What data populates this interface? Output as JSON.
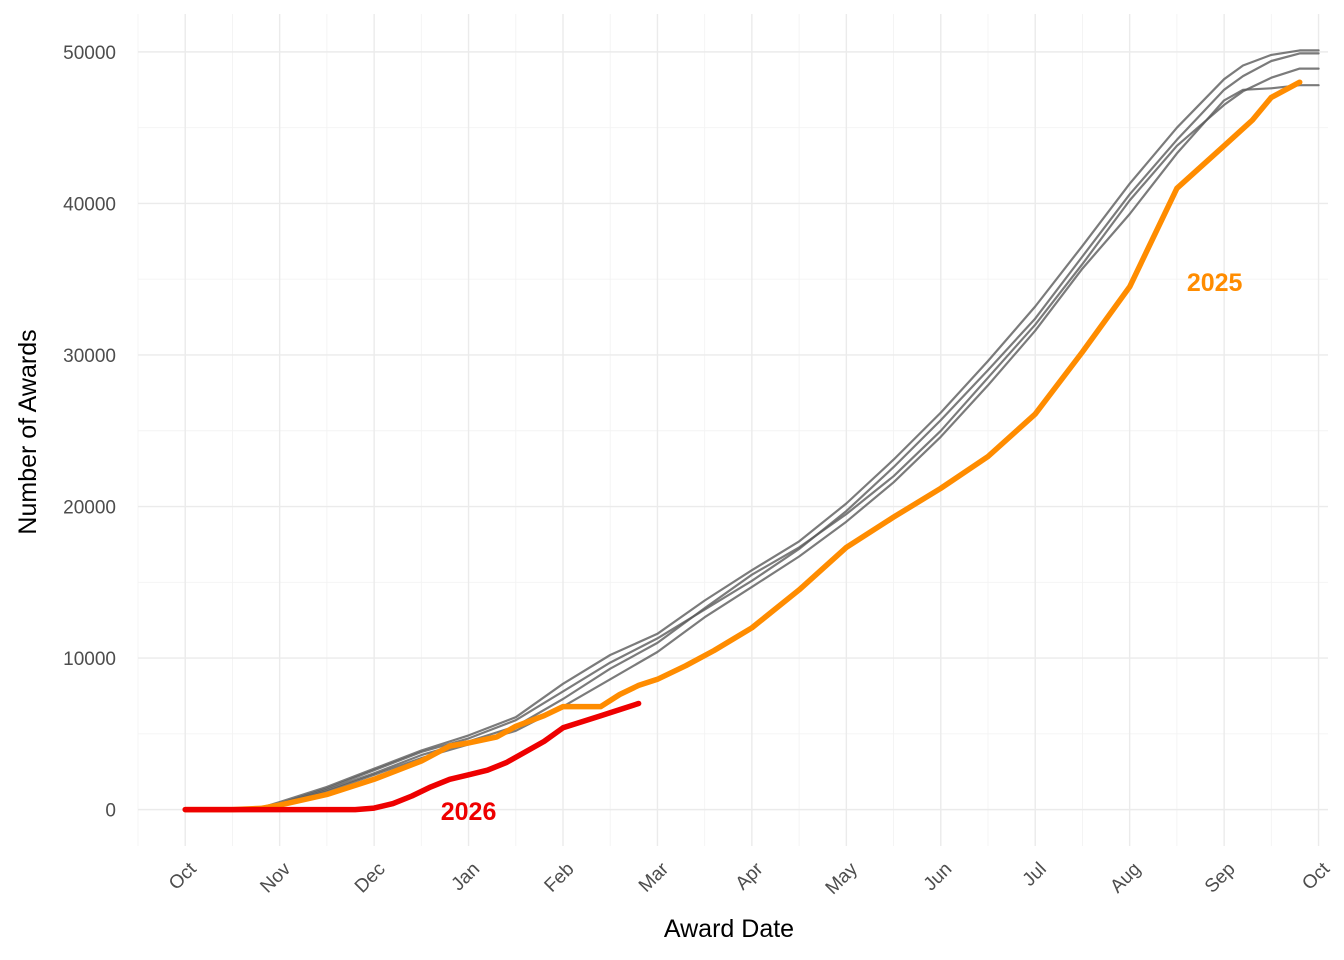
{
  "chart_data": {
    "type": "line",
    "title": "",
    "xlabel": "Award Date",
    "ylabel": "Number of Awards",
    "x_ticks": [
      {
        "label": "Oct",
        "month_index": 0
      },
      {
        "label": "Nov",
        "month_index": 1
      },
      {
        "label": "Dec",
        "month_index": 2
      },
      {
        "label": "Jan",
        "month_index": 3
      },
      {
        "label": "Feb",
        "month_index": 4
      },
      {
        "label": "Mar",
        "month_index": 5
      },
      {
        "label": "Apr",
        "month_index": 6
      },
      {
        "label": "May",
        "month_index": 7
      },
      {
        "label": "Jun",
        "month_index": 8
      },
      {
        "label": "Jul",
        "month_index": 9
      },
      {
        "label": "Aug",
        "month_index": 10
      },
      {
        "label": "Sep",
        "month_index": 11
      },
      {
        "label": "Oct",
        "month_index": 12
      }
    ],
    "y_ticks": [
      0,
      10000,
      20000,
      30000,
      40000,
      50000
    ],
    "xlim": [
      -0.5,
      12.1
    ],
    "ylim": [
      -2400,
      52500
    ],
    "grid": true,
    "legend": "none",
    "x_unit": "months since Oct 1",
    "series": [
      {
        "label": "",
        "color": "#5a5a5a",
        "x": [
          0,
          0.5,
          0.8,
          1.0,
          1.5,
          2.0,
          2.5,
          3.0,
          3.5,
          4.0,
          4.5,
          5.0,
          5.5,
          6.0,
          6.5,
          7.0,
          7.5,
          8.0,
          8.5,
          9.0,
          9.5,
          10.0,
          10.5,
          11.0,
          11.2,
          11.5,
          11.8,
          12.0
        ],
        "y": [
          0,
          0,
          100,
          400,
          1400,
          2600,
          3800,
          4700,
          5900,
          7800,
          9700,
          11300,
          13200,
          15100,
          17200,
          19700,
          22600,
          25700,
          29000,
          32400,
          36500,
          40600,
          44200,
          47500,
          48400,
          49400,
          49900,
          49900
        ]
      },
      {
        "label": "",
        "color": "#5a5a5a",
        "x": [
          0,
          0.5,
          0.8,
          1.0,
          1.5,
          2.0,
          2.5,
          3.0,
          3.5,
          4.0,
          4.5,
          5.0,
          5.5,
          6.0,
          6.5,
          7.0,
          7.5,
          8.0,
          8.5,
          9.0,
          9.5,
          10.0,
          10.5,
          11.0,
          11.2,
          11.5,
          11.8,
          12.0
        ],
        "y": [
          0,
          0,
          80,
          350,
          1300,
          2400,
          3600,
          4500,
          5500,
          7300,
          9300,
          11000,
          13300,
          15500,
          17300,
          19500,
          22000,
          25000,
          28500,
          32000,
          36000,
          40200,
          43800,
          46500,
          47400,
          48300,
          48900,
          48900
        ]
      },
      {
        "label": "",
        "color": "#5a5a5a",
        "x": [
          0,
          0.5,
          0.8,
          1.0,
          1.5,
          2.0,
          2.5,
          3.0,
          3.5,
          4.0,
          4.5,
          5.0,
          5.5,
          6.0,
          6.5,
          7.0,
          7.5,
          8.0,
          8.5,
          9.0,
          9.5,
          10.0,
          10.5,
          11.0,
          11.2,
          11.5,
          11.8,
          12.0
        ],
        "y": [
          0,
          0,
          60,
          300,
          1200,
          2300,
          3400,
          4300,
          5200,
          6800,
          8600,
          10400,
          12700,
          14700,
          16700,
          19000,
          21600,
          24600,
          28000,
          31600,
          35700,
          39300,
          43300,
          46800,
          47500,
          47600,
          47800,
          47800
        ]
      },
      {
        "label": "",
        "color": "#5a5a5a",
        "x": [
          0,
          0.5,
          0.8,
          1.0,
          1.5,
          2.0,
          2.5,
          3.0,
          3.5,
          4.0,
          4.5,
          5.0,
          5.5,
          6.0,
          6.5,
          7.0,
          7.5,
          8.0,
          8.5,
          9.0,
          9.5,
          10.0,
          10.5,
          11.0,
          11.2,
          11.5,
          11.8,
          12.0
        ],
        "y": [
          0,
          0,
          120,
          500,
          1500,
          2700,
          3900,
          4900,
          6100,
          8300,
          10200,
          11600,
          13800,
          15800,
          17700,
          20200,
          23100,
          26200,
          29600,
          33200,
          37200,
          41300,
          45000,
          48200,
          49100,
          49800,
          50100,
          50100
        ]
      },
      {
        "label": "2025",
        "color": "#ff8c00",
        "x": [
          0,
          0.5,
          0.8,
          1.0,
          1.5,
          2.0,
          2.5,
          2.8,
          3.0,
          3.3,
          3.5,
          3.8,
          4.0,
          4.2,
          4.4,
          4.6,
          4.8,
          5.0,
          5.3,
          5.6,
          6.0,
          6.5,
          7.0,
          7.5,
          8.0,
          8.5,
          9.0,
          9.5,
          10.0,
          10.5,
          11.0,
          11.3,
          11.5,
          11.8
        ],
        "y": [
          0,
          0,
          80,
          300,
          1000,
          2000,
          3200,
          4200,
          4400,
          4800,
          5500,
          6200,
          6800,
          6800,
          6800,
          7600,
          8200,
          8600,
          9500,
          10500,
          12000,
          14500,
          17300,
          19300,
          21200,
          23300,
          26100,
          30200,
          34500,
          41000,
          43800,
          45500,
          47000,
          48000
        ]
      },
      {
        "label": "2026",
        "color": "#ee0000",
        "x": [
          0,
          0.5,
          1.0,
          1.5,
          1.8,
          2.0,
          2.2,
          2.4,
          2.6,
          2.8,
          3.0,
          3.2,
          3.4,
          3.6,
          3.8,
          4.0,
          4.2,
          4.4,
          4.6,
          4.8
        ],
        "y": [
          0,
          0,
          0,
          0,
          0,
          100,
          400,
          900,
          1500,
          2000,
          2300,
          2600,
          3100,
          3800,
          4500,
          5400,
          5800,
          6200,
          6600,
          7000
        ]
      }
    ],
    "annotations": [
      {
        "text": "2025",
        "color": "#ff8c00",
        "x": 10.9,
        "y": 34800
      },
      {
        "text": "2026",
        "color": "#ee0000",
        "x": 3.0,
        "y": -100
      }
    ]
  }
}
